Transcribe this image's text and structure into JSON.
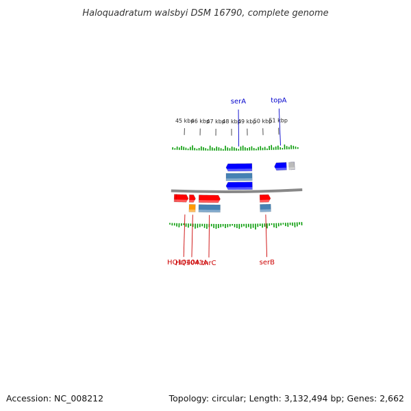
{
  "title": "Haloquadratum walsbyi DSM 16790, complete genome",
  "footer": {
    "accession": "Accession: NC_008212",
    "summary": "Topology: circular; Length: 3,132,494 bp; Genes: 2,662"
  },
  "colors": {
    "forward_cds": "#ff0000",
    "reverse_cds": "#0000ff",
    "rna": "#ff9900",
    "gene_bar": "#4682b4",
    "grey_feature": "#bbbbbb",
    "backbone": "#888888",
    "forward_label": "#cc0000",
    "reverse_label": "#0000cc",
    "skew_tick": "#009900"
  },
  "scale": {
    "unit": "kbp",
    "ticks": [
      {
        "pos": 45,
        "label": "45 kbp"
      },
      {
        "pos": 46,
        "label": "46 kbp"
      },
      {
        "pos": 47,
        "label": "47 kbp"
      },
      {
        "pos": 48,
        "label": "48 kbp"
      },
      {
        "pos": 49,
        "label": "49 kbp"
      },
      {
        "pos": 50,
        "label": "50 kbp"
      },
      {
        "pos": 51,
        "label": "51 kbp"
      }
    ]
  },
  "features": [
    {
      "kind": "cds",
      "strand": 1,
      "start": 44.5,
      "end": 44.75
    },
    {
      "kind": "cds",
      "strand": 1,
      "start": 44.62,
      "end": 45.36
    },
    {
      "kind": "rna",
      "strand": 1,
      "start": 45.42,
      "end": 45.8
    },
    {
      "kind": "cds",
      "strand": 1,
      "start": 45.42,
      "end": 45.8
    },
    {
      "kind": "gene",
      "strand": 1,
      "start": 46.0,
      "end": 47.3
    },
    {
      "kind": "cds",
      "strand": 1,
      "start": 46.0,
      "end": 47.3
    },
    {
      "kind": "cds",
      "strand": -1,
      "start": 47.65,
      "end": 49.26
    },
    {
      "kind": "gene",
      "strand": -1,
      "start": 47.65,
      "end": 49.26
    },
    {
      "kind": "cds",
      "strand": -1,
      "start": 47.65,
      "end": 49.26
    },
    {
      "kind": "gene",
      "strand": 1,
      "start": 49.7,
      "end": 50.35
    },
    {
      "kind": "cds",
      "strand": 1,
      "start": 49.7,
      "end": 50.35
    },
    {
      "kind": "cds",
      "strand": -1,
      "start": 50.65,
      "end": 51.4
    },
    {
      "kind": "cds",
      "strand": -1,
      "start": 51.55,
      "end": 51.9
    },
    {
      "kind": "grey",
      "strand": -1,
      "start": 51.55,
      "end": 51.9
    }
  ],
  "labels": [
    {
      "text": "HQ1040A",
      "strand": 1,
      "pos": 45.18
    },
    {
      "text": "HQ1041A",
      "strand": 1,
      "pos": 45.65
    },
    {
      "text": "thrC",
      "strand": 1,
      "pos": 46.65
    },
    {
      "text": "serB",
      "strand": 1,
      "pos": 50.03
    },
    {
      "text": "serA",
      "strand": -1,
      "pos": 48.45
    },
    {
      "text": "topA",
      "strand": -1,
      "pos": 51.08
    }
  ],
  "skew": {
    "forward": [
      0.2,
      0.3,
      0.3,
      0.4,
      0.5,
      0.3,
      0.2,
      0.4,
      0.5,
      0.3,
      0.4,
      0.6,
      0.5,
      0.4,
      0.3,
      0.5,
      0.6,
      0.4,
      0.3,
      0.5,
      0.6,
      0.5,
      0.4,
      0.3,
      0.5,
      0.4,
      0.3,
      0.2,
      0.4,
      0.5,
      0.6,
      0.4,
      0.3,
      0.5,
      0.4,
      0.6,
      0.5,
      0.7,
      0.4,
      0.3,
      0.5,
      0.4,
      0.6,
      0.3,
      0.2,
      0.5,
      0.6,
      0.4,
      0.3,
      0.2,
      0.4,
      0.5,
      0.3,
      0.4,
      0.6,
      0.5,
      0.3,
      0.4
    ],
    "reverse": [
      0.3,
      0.2,
      0.4,
      0.3,
      0.5,
      0.4,
      0.3,
      0.2,
      0.4,
      0.6,
      0.3,
      0.2,
      0.3,
      0.5,
      0.4,
      0.3,
      0.2,
      0.6,
      0.4,
      0.3,
      0.5,
      0.4,
      0.3,
      0.2,
      0.6,
      0.4,
      0.3,
      0.5,
      0.4,
      0.3,
      0.2,
      0.5,
      0.6,
      0.4,
      0.3,
      0.4,
      0.5,
      0.3,
      0.2,
      0.4,
      0.5,
      0.3,
      0.4,
      0.2,
      0.5,
      0.6,
      0.3,
      0.4,
      0.5,
      0.3,
      0.2,
      0.6,
      0.4,
      0.3,
      0.5,
      0.4,
      0.3,
      0.2
    ]
  }
}
